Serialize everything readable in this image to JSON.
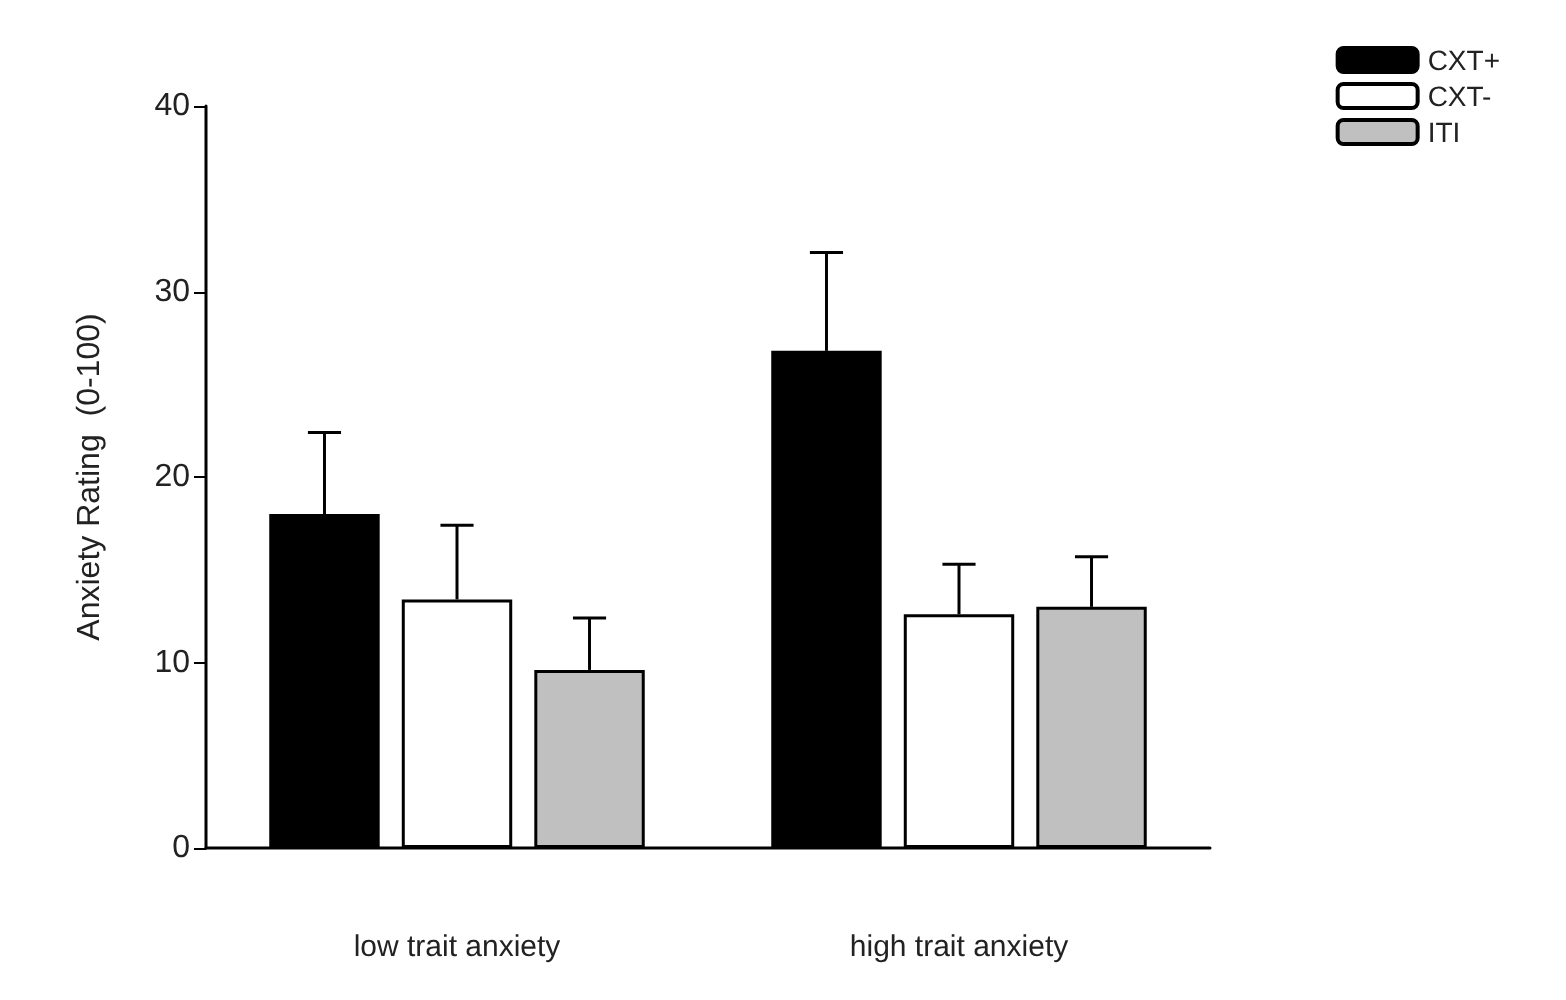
{
  "chart_data": {
    "type": "bar",
    "ylabel": "Anxiety Rating  (0-100)",
    "categories": [
      "low trait anxiety",
      "high trait anxiety"
    ],
    "series": [
      {
        "name": "CXT+",
        "color": "#000000",
        "values": [
          18.0,
          26.8
        ],
        "errors": [
          [
            18.0,
            22.4
          ],
          [
            26.8,
            32.1
          ]
        ]
      },
      {
        "name": "CXT-",
        "color": "#ffffff",
        "values": [
          13.4,
          12.6
        ],
        "errors": [
          [
            13.4,
            17.4
          ],
          [
            12.6,
            15.3
          ]
        ]
      },
      {
        "name": "ITI",
        "color": "#c0c0c0",
        "values": [
          9.6,
          13.0
        ],
        "errors": [
          [
            9.6,
            12.4
          ],
          [
            13.0,
            15.7
          ]
        ]
      }
    ],
    "ylim": [
      0,
      40
    ],
    "yticks": [
      0,
      10,
      20,
      30,
      40
    ],
    "grid": false,
    "legend": "top right"
  }
}
